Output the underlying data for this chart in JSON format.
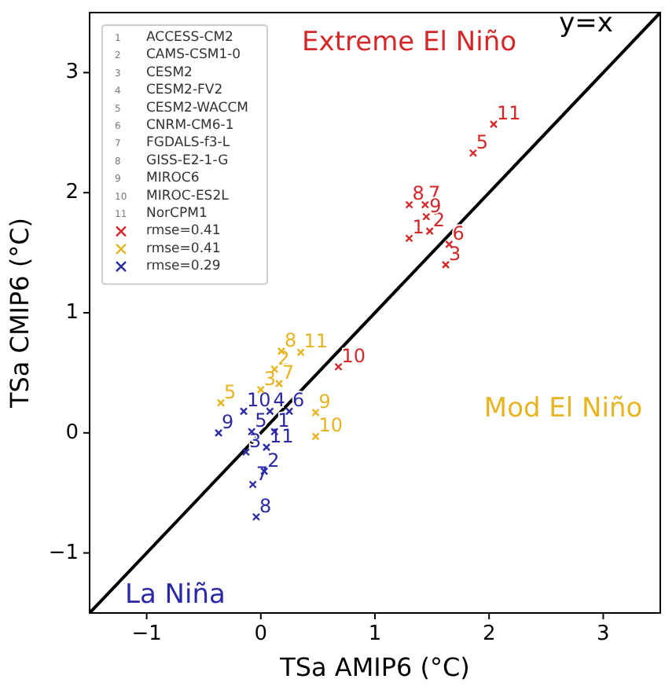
{
  "chart_data": {
    "type": "scatter",
    "xlabel": "TSa AMIP6 (°C)",
    "ylabel": "TSa CMIP6 (°C)",
    "xlim": [
      -1.5,
      3.5
    ],
    "ylim": [
      -1.5,
      3.5
    ],
    "xticks": [
      {
        "value": -1,
        "label": "−1"
      },
      0,
      1,
      2,
      3
    ],
    "yticks": [
      {
        "value": -1,
        "label": "−1"
      },
      0,
      1,
      2,
      3
    ],
    "legend": "top left",
    "grid": false,
    "marker": "cross",
    "series": [
      {
        "name": "rmse=0.41",
        "color": "#d62728",
        "x": [
          1.3,
          1.48,
          1.62,
          1.86,
          1.65,
          1.44,
          1.3,
          1.45,
          0.68,
          2.04
        ],
        "values": [
          1.62,
          1.68,
          1.4,
          2.33,
          1.57,
          1.9,
          1.9,
          1.8,
          0.55,
          2.57
        ]
      },
      {
        "name": "rmse=0.41",
        "color": "#e8b420",
        "x": [
          0.12,
          0.0,
          -0.35,
          0.16,
          0.18,
          0.48,
          0.48,
          0.35
        ],
        "values": [
          0.53,
          0.36,
          0.25,
          0.41,
          0.68,
          0.17,
          -0.03,
          0.67
        ]
      },
      {
        "name": "rmse=0.29",
        "color": "#2a2aa8",
        "x": [
          0.12,
          0.03,
          -0.13,
          0.08,
          -0.08,
          0.25,
          -0.07,
          -0.04,
          -0.37,
          -0.15,
          0.05
        ],
        "values": [
          0.01,
          -0.32,
          -0.16,
          0.18,
          0.01,
          0.18,
          -0.43,
          -0.7,
          0.0,
          0.18,
          -0.12
        ]
      },
      {
        "name": "y=x",
        "type": "line",
        "marker": "none",
        "color": "#000000",
        "x": [
          -1.5,
          3.5
        ],
        "values": [
          -1.5,
          3.5
        ]
      }
    ],
    "annotations": [
      "1 ACCESS-CM2",
      "2 CAMS-CSM1-0",
      "3 CESM2",
      "4 CESM2-FV2",
      "5 CESM2-WACCM",
      "6 CNRM-CM6-1",
      "7 FGDALS-f3-L",
      "8 GISS-E2-1-G",
      "9 MIROC6",
      "10 MIROC-ES2L",
      "11 NorCPM1",
      "Extreme El Niño",
      "Mod El Niño",
      "La Niña",
      {
        "text": "1",
        "x": 1.3,
        "y": 1.62
      },
      {
        "text": "2",
        "x": 1.48,
        "y": 1.68
      },
      {
        "text": "3",
        "x": 1.62,
        "y": 1.4
      },
      {
        "text": "5",
        "x": 1.86,
        "y": 2.33
      },
      {
        "text": "6",
        "x": 1.65,
        "y": 1.57
      },
      {
        "text": "7",
        "x": 1.44,
        "y": 1.9
      },
      {
        "text": "8",
        "x": 1.3,
        "y": 1.9
      },
      {
        "text": "9",
        "x": 1.45,
        "y": 1.8
      },
      {
        "text": "10",
        "x": 0.68,
        "y": 0.55
      },
      {
        "text": "11",
        "x": 2.04,
        "y": 2.57
      },
      {
        "text": "2",
        "x": 0.12,
        "y": 0.53
      },
      {
        "text": "3",
        "x": 0.0,
        "y": 0.36
      },
      {
        "text": "5",
        "x": -0.35,
        "y": 0.25
      },
      {
        "text": "7",
        "x": 0.16,
        "y": 0.41
      },
      {
        "text": "8",
        "x": 0.18,
        "y": 0.68
      },
      {
        "text": "9",
        "x": 0.48,
        "y": 0.17
      },
      {
        "text": "10",
        "x": 0.48,
        "y": -0.03
      },
      {
        "text": "11",
        "x": 0.35,
        "y": 0.67
      },
      {
        "text": "1",
        "x": 0.12,
        "y": 0.01
      },
      {
        "text": "2",
        "x": 0.03,
        "y": -0.32
      },
      {
        "text": "3",
        "x": -0.13,
        "y": -0.16
      },
      {
        "text": "4",
        "x": 0.08,
        "y": 0.18
      },
      {
        "text": "5",
        "x": -0.08,
        "y": 0.01
      },
      {
        "text": "6",
        "x": 0.25,
        "y": 0.18
      },
      {
        "text": "7",
        "x": -0.07,
        "y": -0.43
      },
      {
        "text": "8",
        "x": -0.04,
        "y": -0.7
      },
      {
        "text": "9",
        "x": -0.37,
        "y": 0.0
      },
      {
        "text": "10",
        "x": -0.15,
        "y": 0.18
      },
      {
        "text": "11",
        "x": 0.05,
        "y": -0.12
      }
    ]
  }
}
